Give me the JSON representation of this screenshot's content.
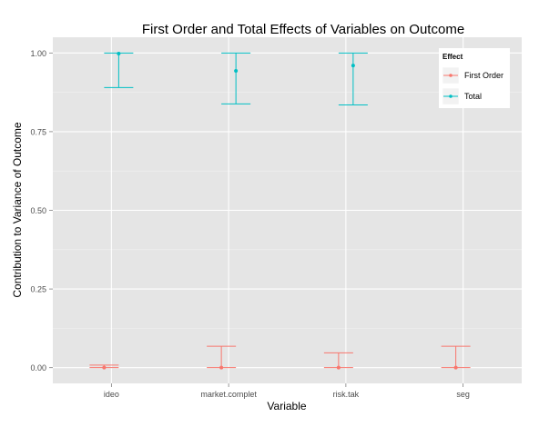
{
  "chart_data": {
    "type": "errorbar",
    "title": "First Order and Total Effects of Variables on Outcome",
    "xlabel": "Variable",
    "ylabel": "Contribution to Variance of Outcome",
    "categories": [
      "ideo",
      "market.complet",
      "risk.tak",
      "seg"
    ],
    "ylim": [
      -0.05,
      1.05
    ],
    "y_ticks": [
      0.0,
      0.25,
      0.5,
      0.75,
      1.0
    ],
    "y_tick_labels": [
      "0.00",
      "0.25",
      "0.50",
      "0.75",
      "1.00"
    ],
    "grid": true,
    "legend": {
      "title": "Effect",
      "placement": "top-right",
      "entries": [
        "First Order",
        "Total"
      ]
    },
    "series": [
      {
        "name": "First Order",
        "color": "#f8766d",
        "values": [
          0.0,
          0.0,
          0.0,
          0.0
        ],
        "lower": [
          0.0,
          0.0,
          0.0,
          0.0
        ],
        "upper": [
          0.008,
          0.068,
          0.047,
          0.068
        ]
      },
      {
        "name": "Total",
        "color": "#00bfc4",
        "values": [
          0.998,
          0.943,
          0.96,
          null
        ],
        "lower": [
          0.89,
          0.838,
          0.835,
          null
        ],
        "upper": [
          1.0,
          1.0,
          1.0,
          null
        ]
      }
    ]
  }
}
